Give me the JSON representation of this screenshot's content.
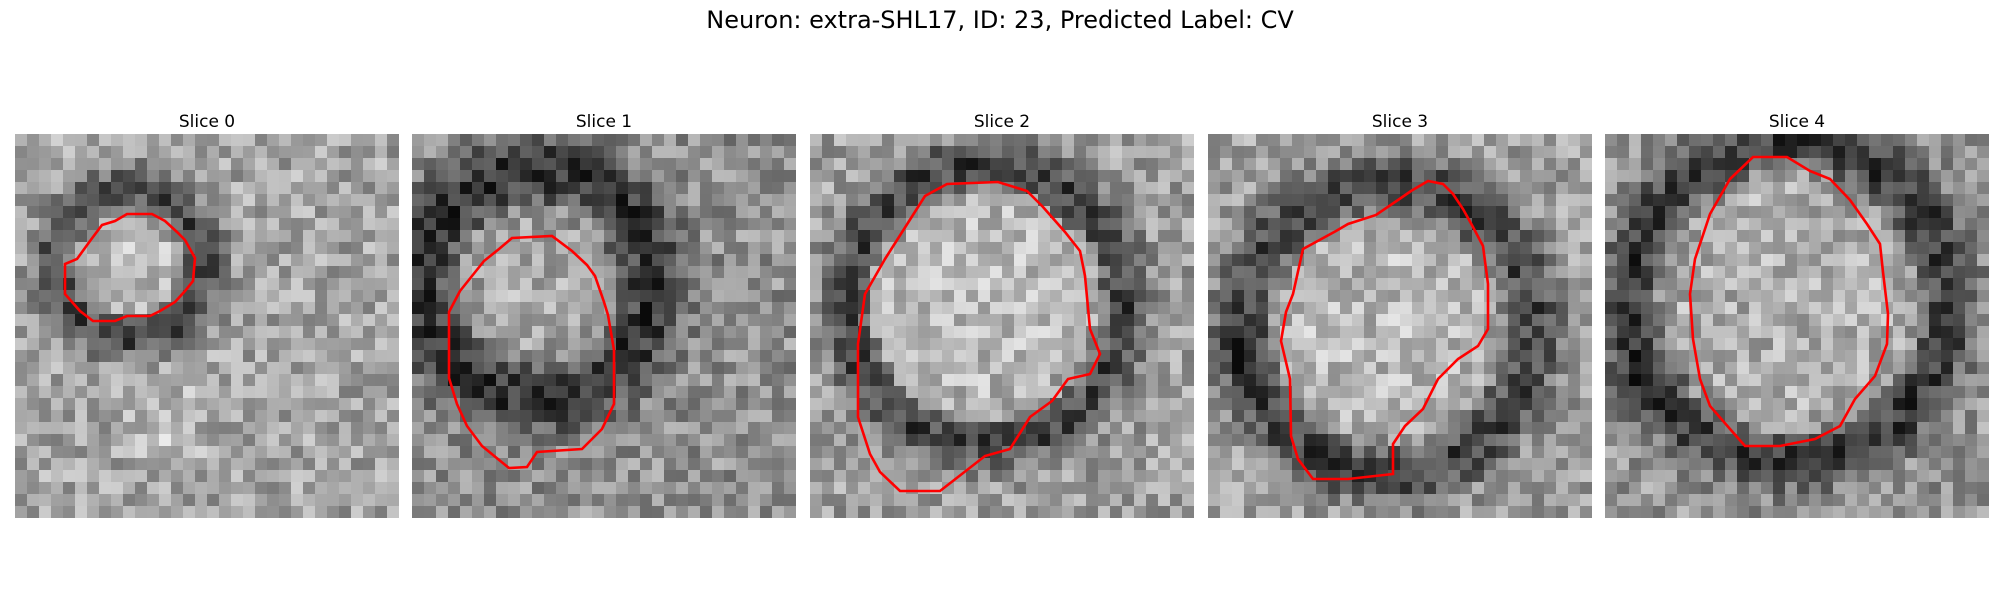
{
  "figure": {
    "title": "Neuron: extra-SHL17, ID: 23, Predicted Label: CV"
  },
  "panels": [
    {
      "title": "Slice 0"
    },
    {
      "title": "Slice 1"
    },
    {
      "title": "Slice 2"
    },
    {
      "title": "Slice 3"
    },
    {
      "title": "Slice 4"
    }
  ],
  "colors": {
    "contour": "#ff0000",
    "background": "#ffffff"
  }
}
